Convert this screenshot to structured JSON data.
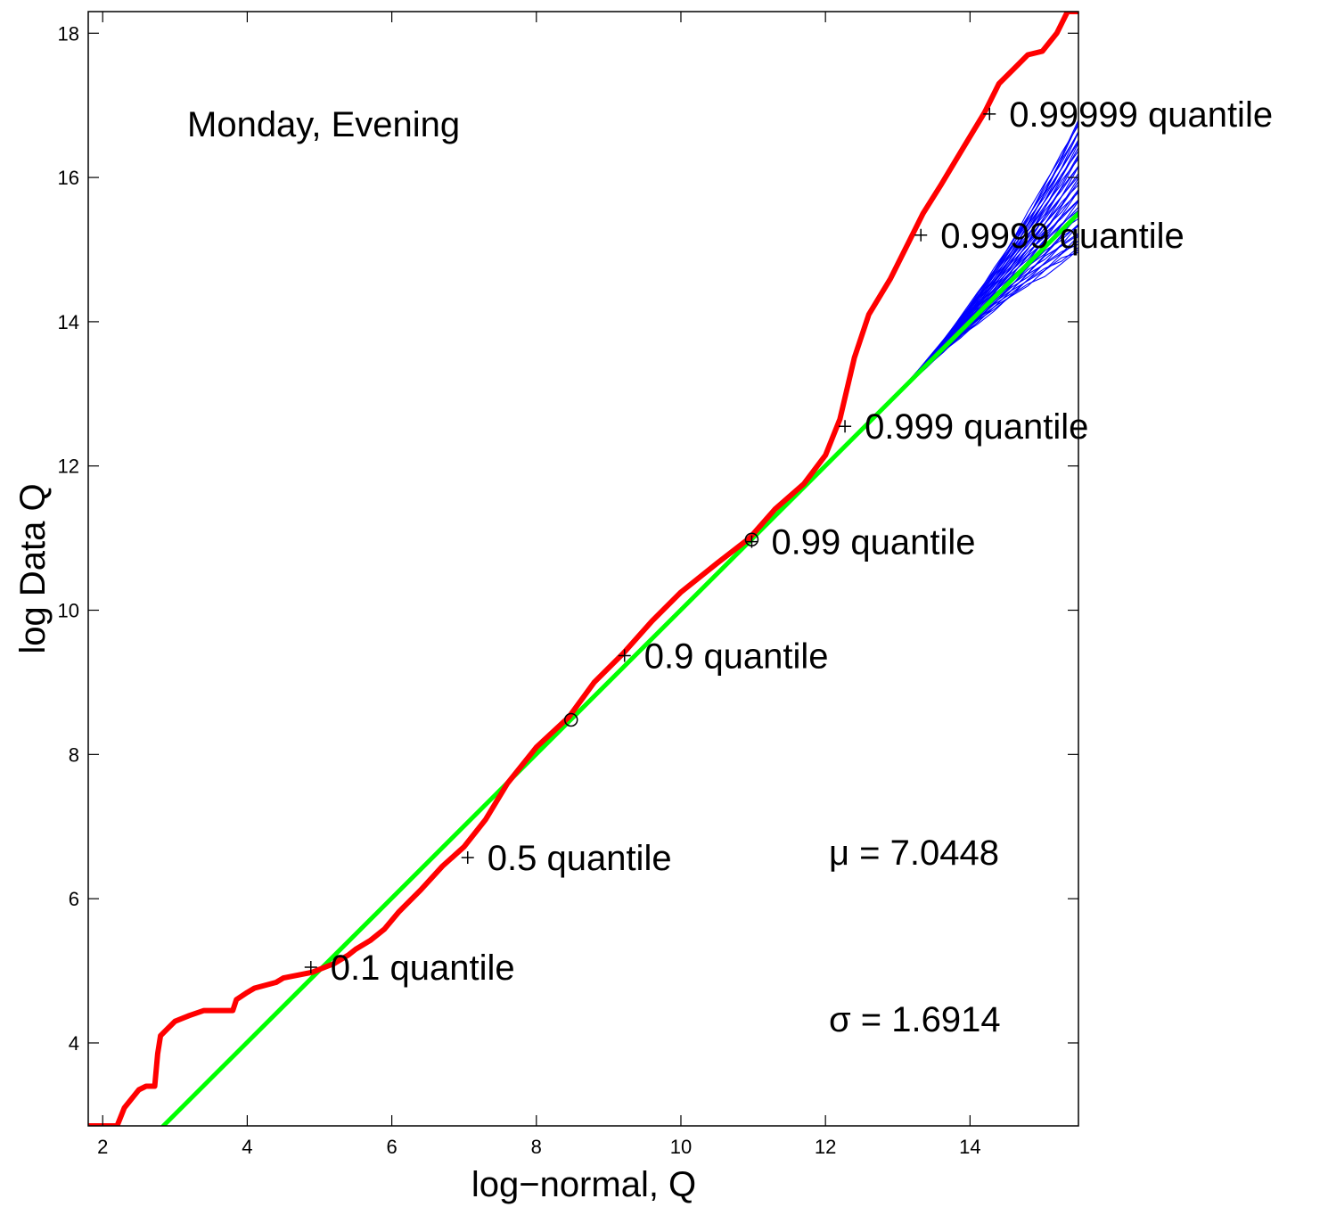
{
  "chart_data": {
    "type": "line",
    "title": "",
    "xlabel": "log−normal, Q",
    "ylabel": "log Data Q",
    "xlim": [
      1.8,
      15.5
    ],
    "ylim": [
      2.85,
      18.3
    ],
    "xticks": [
      2,
      4,
      6,
      8,
      10,
      12,
      14
    ],
    "yticks": [
      4,
      6,
      8,
      10,
      12,
      14,
      16,
      18
    ],
    "grid": false,
    "annotations": {
      "panel": "Monday, Evening",
      "mu": "μ = 7.0448",
      "sigma": "σ = 1.6914"
    },
    "series": [
      {
        "color": "#ff0000",
        "role": "data quantiles",
        "x": [
          1.8,
          2.2,
          2.3,
          2.5,
          2.6,
          2.72,
          2.76,
          2.8,
          2.9,
          3.0,
          3.2,
          3.4,
          3.8,
          3.85,
          4.0,
          4.1,
          4.4,
          4.5,
          4.9,
          5.0,
          5.2,
          5.4,
          5.5,
          5.7,
          5.9,
          6.1,
          6.4,
          6.7,
          7.0,
          7.3,
          7.6,
          8.0,
          8.45,
          8.8,
          9.2,
          9.6,
          10.0,
          10.5,
          10.95,
          11.3,
          11.7,
          12.0,
          12.2,
          12.4,
          12.6,
          12.9,
          13.1,
          13.35,
          13.6,
          13.9,
          14.2,
          14.4,
          14.6,
          14.8,
          15.0,
          15.2,
          15.35,
          15.5
        ],
        "y": [
          2.85,
          2.85,
          3.1,
          3.35,
          3.4,
          3.4,
          3.85,
          4.1,
          4.2,
          4.3,
          4.38,
          4.45,
          4.45,
          4.6,
          4.7,
          4.76,
          4.84,
          4.9,
          4.98,
          5.02,
          5.1,
          5.22,
          5.3,
          5.42,
          5.58,
          5.82,
          6.12,
          6.45,
          6.72,
          7.1,
          7.6,
          8.1,
          8.52,
          9.0,
          9.4,
          9.85,
          10.25,
          10.65,
          11.0,
          11.4,
          11.75,
          12.15,
          12.65,
          13.5,
          14.1,
          14.6,
          15.0,
          15.5,
          15.9,
          16.4,
          16.9,
          17.3,
          17.5,
          17.7,
          17.75,
          18.0,
          18.3,
          18.3
        ]
      },
      {
        "color": "#00ff00",
        "role": "fitted line",
        "x": [
          2.84,
          15.5
        ],
        "y": [
          2.85,
          15.5
        ]
      }
    ],
    "simulated_band": {
      "color": "#0000ff",
      "description": "simulated log-normal quantile curves",
      "x_start": 12.7,
      "x_end": 15.5,
      "y_end_min": 14.95,
      "y_end_max": 16.8
    },
    "quantile_markers": [
      {
        "x": 4.88,
        "y": 5.05,
        "marker": "+",
        "label": "0.1 quantile"
      },
      {
        "x": 7.05,
        "y": 6.57,
        "marker": "+",
        "label": "0.5 quantile"
      },
      {
        "x": 8.48,
        "y": 8.48,
        "marker": "o",
        "label": ""
      },
      {
        "x": 9.22,
        "y": 9.37,
        "marker": "+",
        "label": "0.9 quantile"
      },
      {
        "x": 10.98,
        "y": 10.98,
        "marker": "o",
        "label": ""
      },
      {
        "x": 10.98,
        "y": 10.95,
        "marker": "+",
        "label": "0.99 quantile"
      },
      {
        "x": 12.27,
        "y": 12.55,
        "marker": "+",
        "label": "0.999 quantile"
      },
      {
        "x": 13.32,
        "y": 15.2,
        "marker": "+",
        "label": "0.9999 quantile"
      },
      {
        "x": 14.27,
        "y": 16.88,
        "marker": "+",
        "label": "0.99999 quantile"
      }
    ]
  }
}
